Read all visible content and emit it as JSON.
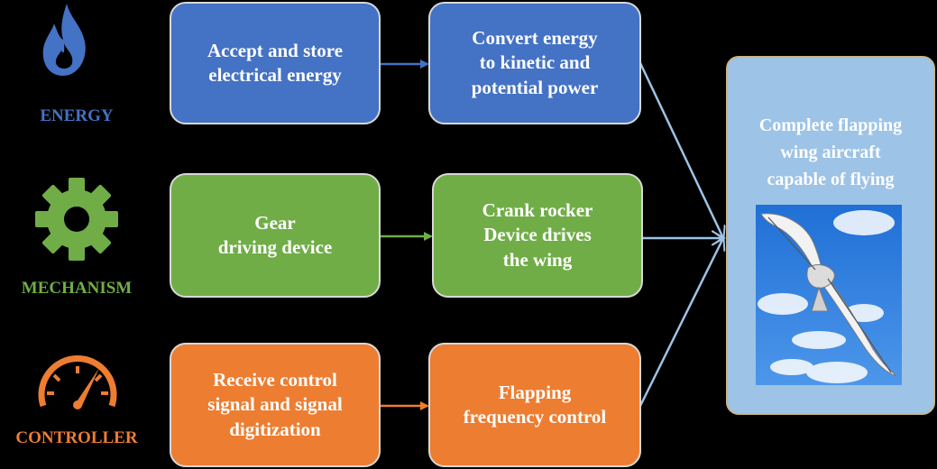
{
  "rows": [
    {
      "category": "ENERGY",
      "icon": "flame-icon",
      "color": "#4472c4",
      "step1": "Accept and store\nelectrical energy",
      "step2": "Convert energy\nto kinetic and\npotential power"
    },
    {
      "category": "MECHANISM",
      "icon": "gear-icon",
      "color": "#70ad47",
      "step1": "Gear\ndriving device",
      "step2": "Crank rocker\nDevice drives\nthe wing"
    },
    {
      "category": "CONTROLLER",
      "icon": "speedometer-icon",
      "color": "#ed7d31",
      "step1": "Receive control\nsignal and signal\ndigitization",
      "step2": "Flapping\nfrequency control"
    }
  ],
  "result": {
    "label": "Complete flapping\nwing aircraft\ncapable of flying",
    "color": "#9dc3e6",
    "image": "flapping-wing-aircraft-photo"
  },
  "arrow_color": "#9dc3e6"
}
